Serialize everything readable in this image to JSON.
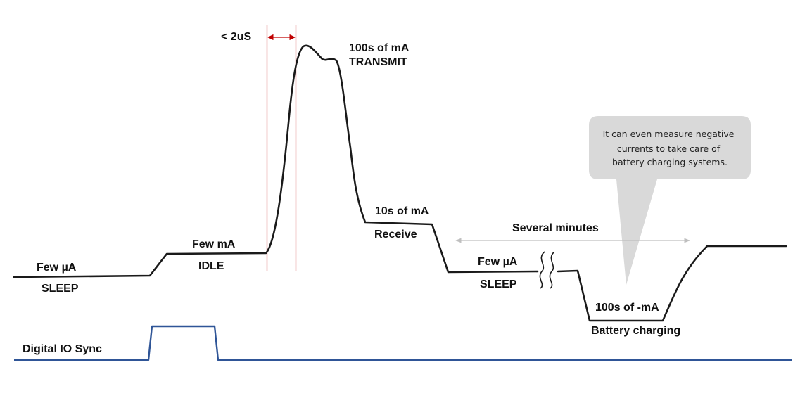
{
  "colors": {
    "current_trace": "#1a1a1a",
    "sync_trace": "#2f5597",
    "timing_markers": "#c00000",
    "span_arrow": "#bfbfbf",
    "callout_fill": "#d9d9d9"
  },
  "timing": {
    "label": "< 2uS"
  },
  "states": {
    "sleep1": {
      "value": "Few µA",
      "name": "SLEEP"
    },
    "idle": {
      "value": "Few mA",
      "name": "IDLE"
    },
    "transmit": {
      "value": "100s of mA",
      "name": "TRANSMIT"
    },
    "receive": {
      "value": "10s of mA",
      "name": "Receive"
    },
    "sleep2": {
      "value": "Few µA",
      "name": "SLEEP"
    },
    "charging": {
      "value": "100s of -mA",
      "name": "Battery charging"
    }
  },
  "span": {
    "label": "Several minutes"
  },
  "callout": {
    "lines": [
      "It can even measure negative",
      "currents to take care of",
      "battery charging systems."
    ]
  },
  "sync": {
    "label": "Digital IO Sync"
  }
}
